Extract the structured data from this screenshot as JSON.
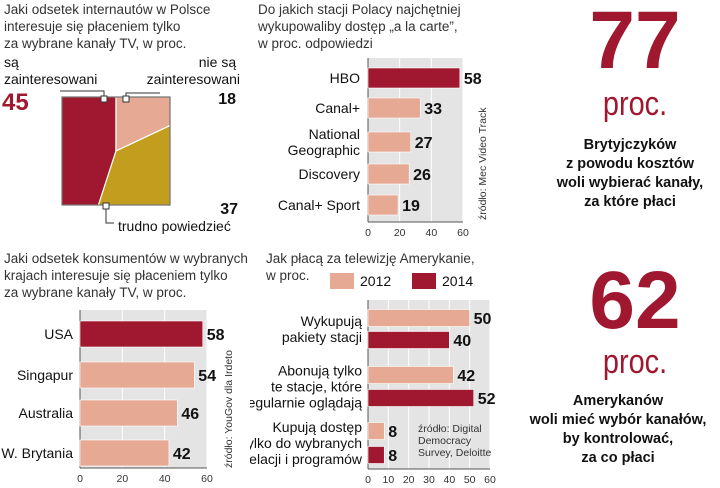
{
  "chart_data": [
    {
      "type": "pie",
      "title": "Jaki odsetek internautów w Polsce interesuje się płaceniem tylko za wybrane kanały TV, w proc.",
      "slices": [
        {
          "label": "są zainteresowani",
          "value": 45,
          "color": "#a0182f"
        },
        {
          "label": "nie są zainteresowani",
          "value": 18,
          "color": "#e6a993"
        },
        {
          "label": "trudno powiedzieć",
          "value": 37,
          "color": "#c29d1e"
        }
      ]
    },
    {
      "type": "bar",
      "title": "Do jakich stacji Polacy najchętniej wykupowaliby dostęp „a la carte”, w proc. odpowiedzi",
      "categories": [
        "HBO",
        "Canal+",
        "National Geographic",
        "Discovery",
        "Canal+ Sport"
      ],
      "values": [
        58,
        33,
        27,
        26,
        19
      ],
      "highlight": [
        true,
        false,
        false,
        false,
        false
      ],
      "xlim": [
        0,
        60
      ],
      "ticks": [
        "0",
        "20",
        "40",
        "60"
      ],
      "source": "źródło: Mec Video Track"
    },
    {
      "type": "bar",
      "title": "Jaki odsetek konsumentów w wybranych krajach interesuje się płaceniem tylko za wybrane kanały TV, w proc.",
      "categories": [
        "USA",
        "Singapur",
        "Australia",
        "W. Brytania"
      ],
      "values": [
        58,
        54,
        46,
        42
      ],
      "highlight": [
        true,
        false,
        false,
        false
      ],
      "xlim": [
        0,
        60
      ],
      "ticks": [
        "0",
        "20",
        "40",
        "60"
      ],
      "source": "źródło: YouGov dla Irdeto"
    },
    {
      "type": "bar",
      "title": "Jak płacą za telewizję Amerykanie, w proc.",
      "categories": [
        "Wykupują pakiety stacji",
        "Abonują tylko te stacje, które regularnie oglądają",
        "Kupują dostęp tylko do wybranych relacji i programów"
      ],
      "series": [
        {
          "name": "2012",
          "values": [
            50,
            42,
            8
          ],
          "color": "#e6a993"
        },
        {
          "name": "2014",
          "values": [
            40,
            52,
            8
          ],
          "color": "#a0182f"
        }
      ],
      "xlim": [
        0,
        60
      ],
      "ticks": [
        "0",
        "10",
        "20",
        "30",
        "40",
        "50",
        "60"
      ],
      "source": "źródło: Digital Democracy Survey, Deloitte"
    }
  ],
  "pie": {
    "title_lines": [
      "Jaki odsetek internautów w Polsce",
      "interesuje się płaceniem tylko",
      "za wybrane kanały TV, w proc."
    ],
    "label_a_lines": [
      "są",
      "zainteresowani"
    ],
    "value_a": "45",
    "label_b_lines": [
      "nie są",
      "zainteresowani"
    ],
    "value_b": "18",
    "label_c": "trudno powiedzieć",
    "value_c": "37"
  },
  "bar1": {
    "title_lines": [
      "Do jakich stacji Polacy najchętniej",
      "wykupowaliby dostęp „a la carte”,",
      "w proc. odpowiedzi"
    ],
    "cat_lines": [
      [
        "HBO"
      ],
      [
        "Canal+"
      ],
      [
        "National",
        "Geographic"
      ],
      [
        "Discovery"
      ],
      [
        "Canal+ Sport"
      ]
    ],
    "source_text": "źródło: Mec Video Track"
  },
  "bar2": {
    "title_lines": [
      "Jaki odsetek konsumentów w wybranych",
      "krajach interesuje się płaceniem tylko",
      "za wybrane kanały TV, w proc."
    ],
    "source_text": "źródło: YouGov dla Irdeto"
  },
  "bar3": {
    "title_lines": [
      "Jak płacą za telewizję Amerykanie,",
      "w proc."
    ],
    "cat_lines": [
      [
        "Wykupują",
        "pakiety stacji"
      ],
      [
        "Abonują tylko",
        "te stacje, które",
        "regularnie oglądają"
      ],
      [
        "Kupują dostęp",
        "tylko do wybranych",
        "relacji i programów"
      ]
    ],
    "source_lines": [
      "źródło: Digital",
      "Democracy",
      "Survey, Deloitte"
    ]
  },
  "stat1": {
    "number": "77",
    "unit": "proc.",
    "text_lines": [
      "Brytyjczyków",
      "z powodu kosztów",
      "woli wybierać kanały,",
      "za które płaci"
    ]
  },
  "stat2": {
    "number": "62",
    "unit": "proc.",
    "text_lines": [
      "Amerykanów",
      "woli mieć wybór kanałów,",
      "by kontrolować,",
      "za co płaci"
    ]
  },
  "colors": {
    "crimson": "#a0182f",
    "salmon": "#e6a993",
    "gold": "#c29d1e",
    "panel": "#e4e4e4"
  }
}
